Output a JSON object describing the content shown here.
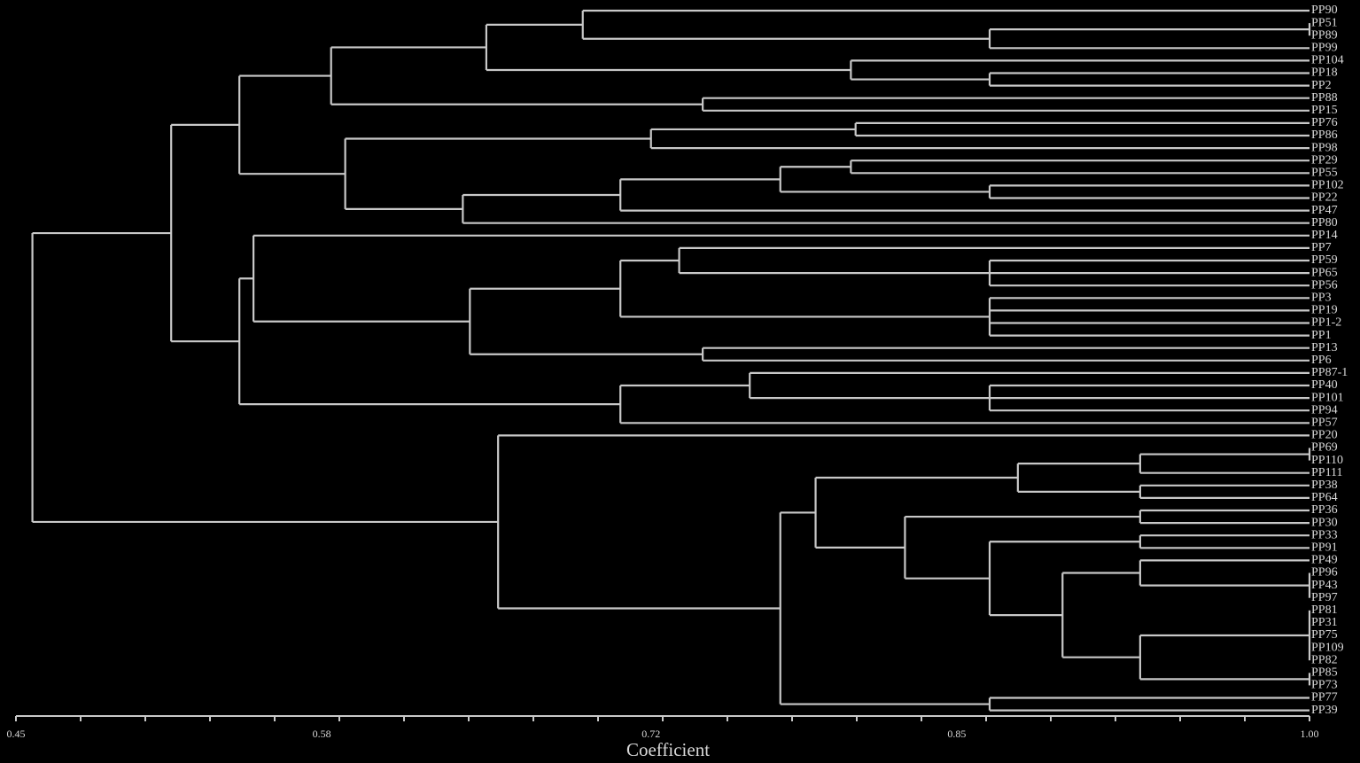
{
  "leaves": [
    "PP90",
    "PP51",
    "PP89",
    "PP99",
    "PP104",
    "PP18",
    "PP2",
    "PP88",
    "PP15",
    "PP76",
    "PP86",
    "PP98",
    "PP29",
    "PP55",
    "PP102",
    "PP22",
    "PP47",
    "PP80",
    "PP14",
    "PP7",
    "PP59",
    "PP65",
    "PP56",
    "PP3",
    "PP19",
    "PP1-2",
    "PP1",
    "PP13",
    "PP6",
    "PP87-1",
    "PP40",
    "PP101",
    "PP94",
    "PP57",
    "PP20",
    "PP69",
    "PP110",
    "PP111",
    "PP38",
    "PP64",
    "PP36",
    "PP30",
    "PP33",
    "PP91",
    "PP49",
    "PP96",
    "PP43",
    "PP97",
    "PP81",
    "PP31",
    "PP75",
    "PP109",
    "PP82",
    "PP85",
    "PP73",
    "PP77",
    "PP39"
  ],
  "axis": {
    "title": "Coefficient",
    "min": 0.45,
    "max": 1.0,
    "tick_labels": [
      "0.45",
      "0.58",
      "0.72",
      "0.85",
      "1.00"
    ],
    "label_values": [
      0.45,
      0.58,
      0.72,
      0.85,
      1.0
    ],
    "minor_tick_count": 21
  },
  "tree": [
    [
      0.457,
      [
        0.516,
        [
          0.545,
          [
            0.584,
            [
              0.65,
              [
                0.691,
                "PP90",
                [
                  0.864,
                  [
                    "1.0",
                    "PP51",
                    "PP89"
                  ],
                  "PP99"
                ]
              ],
              [
                0.805,
                "PP104",
                [
                  0.864,
                  "PP18",
                  "PP2"
                ]
              ]
            ],
            [
              0.742,
              "PP88",
              "PP15"
            ]
          ],
          [
            0.59,
            [
              0.72,
              [
                0.807,
                "PP76",
                "PP86"
              ],
              "PP98"
            ],
            [
              0.64,
              [
                0.707,
                [
                  0.775,
                  [
                    0.805,
                    "PP29",
                    "PP55"
                  ],
                  [
                    0.864,
                    "PP102",
                    "PP22"
                  ]
                ],
                "PP47"
              ],
              "PP80"
            ]
          ]
        ],
        [
          0.545,
          [
            0.551,
            "PP14",
            [
              0.643,
              [
                0.707,
                [
                  0.732,
                  "PP7",
                  [
                    0.864,
                    "PP59",
                    "PP65",
                    "PP56"
                  ]
                ],
                [
                  0.864,
                  "PP3",
                  "PP19",
                  "PP1-2",
                  "PP1"
                ]
              ],
              [
                0.742,
                "PP13",
                "PP6"
              ]
            ]
          ],
          [
            0.707,
            [
              0.762,
              "PP87-1",
              [
                0.864,
                "PP40",
                "PP101",
                "PP94"
              ]
            ],
            "PP57"
          ]
        ]
      ],
      [
        0.655,
        "PP20",
        [
          0.775,
          [
            0.79,
            [
              0.876,
              [
                0.928,
                [
                  "1.0",
                  "PP69",
                  "PP110"
                ],
                "PP111"
              ],
              [
                0.928,
                "PP38",
                "PP64"
              ]
            ],
            [
              0.828,
              [
                0.928,
                "PP36",
                "PP30"
              ],
              [
                0.864,
                [
                  0.928,
                  "PP33",
                  "PP91"
                ],
                [
                  0.895,
                  [
                    0.928,
                    "PP49",
                    [
                      "1.0",
                      "PP96",
                      "PP43",
                      "PP97"
                    ]
                  ],
                  [
                    0.928,
                    [
                      "1.0",
                      "PP81",
                      "PP31",
                      "PP75",
                      "PP109",
                      "PP82"
                    ],
                    [
                      "1.0",
                      "PP85",
                      "PP73"
                    ]
                  ]
                ]
              ]
            ]
          ],
          [
            0.864,
            "PP77",
            "PP39"
          ]
        ]
      ]
    ]
  ]
}
